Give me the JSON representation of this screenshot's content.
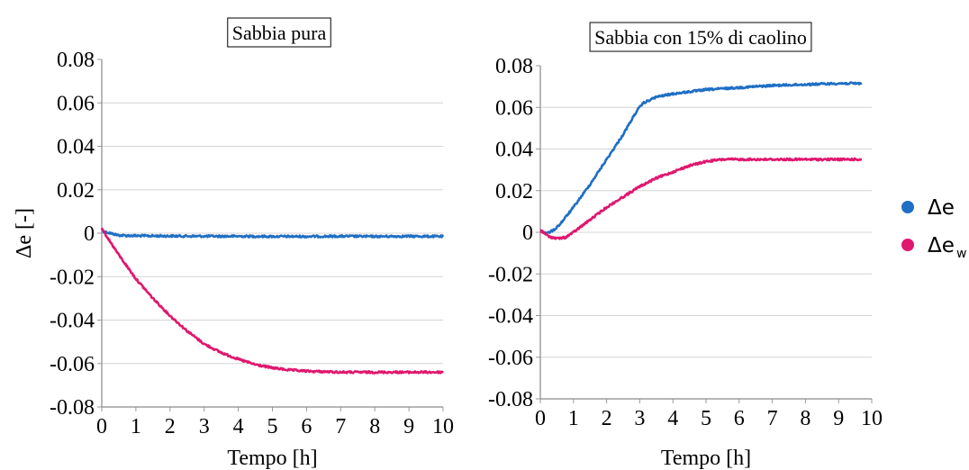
{
  "chart_data": [
    {
      "type": "line",
      "title": "Sabbia pura",
      "xlabel": "Tempo [h]",
      "ylabel": "Δe [-]",
      "xlim": [
        0,
        10
      ],
      "ylim": [
        -0.08,
        0.08
      ],
      "x_ticks": [
        "0",
        "1",
        "2",
        "3",
        "4",
        "5",
        "6",
        "7",
        "8",
        "9",
        "10"
      ],
      "y_ticks": [
        "0.08",
        "0.06",
        "0.04",
        "0.02",
        "0",
        "-0.02",
        "-0.04",
        "-0.06",
        "-0.08"
      ],
      "grid": true,
      "series": [
        {
          "name": "Δe",
          "color": "#1f6fc4",
          "x": [
            0,
            0.5,
            1,
            2,
            3,
            4,
            5,
            6,
            7,
            8,
            9,
            10
          ],
          "y": [
            0.001,
            -0.001,
            -0.0012,
            -0.0013,
            -0.0014,
            -0.0014,
            -0.0015,
            -0.0015,
            -0.0014,
            -0.0015,
            -0.0014,
            -0.0015
          ]
        },
        {
          "name": "Δe_w",
          "color": "#e0176e",
          "x": [
            0,
            0.5,
            1,
            1.5,
            2,
            2.5,
            3,
            3.5,
            4,
            4.5,
            5,
            5.5,
            6,
            7,
            8,
            9,
            10
          ],
          "y": [
            0.002,
            -0.01,
            -0.021,
            -0.03,
            -0.038,
            -0.045,
            -0.051,
            -0.055,
            -0.058,
            -0.0605,
            -0.062,
            -0.063,
            -0.0635,
            -0.064,
            -0.064,
            -0.064,
            -0.064
          ]
        }
      ]
    },
    {
      "type": "line",
      "title": "Sabbia con 15% di caolino",
      "xlabel": "Tempo [h]",
      "ylabel": "",
      "xlim": [
        0,
        10
      ],
      "ylim": [
        -0.08,
        0.08
      ],
      "x_ticks": [
        "0",
        "1",
        "2",
        "3",
        "4",
        "5",
        "6",
        "7",
        "8",
        "9",
        "10"
      ],
      "y_ticks": [
        "0.08",
        "0.06",
        "0.04",
        "0.02",
        "0",
        "-0.02",
        "-0.04",
        "-0.06",
        "-0.08"
      ],
      "grid": true,
      "series": [
        {
          "name": "Δe",
          "color": "#1f6fc4",
          "x": [
            0,
            0.2,
            0.4,
            0.6,
            1,
            1.5,
            2,
            2.5,
            2.9,
            3.1,
            3.5,
            4,
            5,
            6,
            7,
            8,
            9,
            9.7
          ],
          "y": [
            0.001,
            -0.0005,
            0.001,
            0.004,
            0.012,
            0.023,
            0.035,
            0.047,
            0.058,
            0.062,
            0.065,
            0.0665,
            0.0685,
            0.0695,
            0.0705,
            0.071,
            0.0715,
            0.0715
          ]
        },
        {
          "name": "Δe_w",
          "color": "#e0176e",
          "x": [
            0,
            0.25,
            0.5,
            0.75,
            1,
            1.5,
            2,
            2.5,
            3,
            3.5,
            4,
            4.5,
            5,
            5.5,
            6,
            7,
            8,
            9,
            9.7
          ],
          "y": [
            0.001,
            -0.002,
            -0.003,
            -0.0025,
            0.0,
            0.006,
            0.012,
            0.017,
            0.022,
            0.026,
            0.029,
            0.032,
            0.034,
            0.035,
            0.035,
            0.035,
            0.035,
            0.035,
            0.035
          ]
        }
      ]
    }
  ],
  "legend": {
    "entries": [
      {
        "label": "Δe",
        "subscript": "",
        "color": "#1f6fc4"
      },
      {
        "label": "Δe",
        "subscript": "w",
        "color": "#e0176e"
      }
    ]
  }
}
